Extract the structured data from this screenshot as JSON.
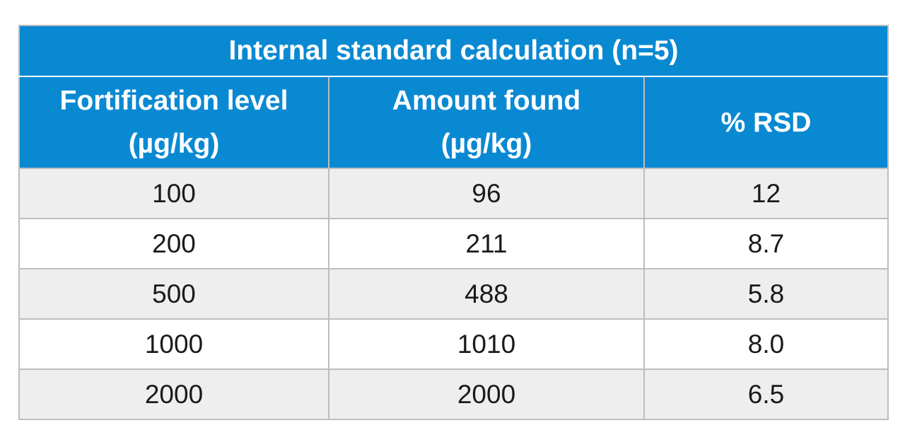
{
  "table": {
    "title": "Internal standard calculation (n=5)",
    "columns": [
      {
        "line1": "Fortification level",
        "line2": "(µg/kg)"
      },
      {
        "line1": "Amount found",
        "line2": "(µg/kg)"
      },
      {
        "line1": "% RSD",
        "line2": ""
      }
    ],
    "rows": [
      [
        "100",
        "96",
        "12"
      ],
      [
        "200",
        "211",
        "8.7"
      ],
      [
        "500",
        "488",
        "5.8"
      ],
      [
        "1000",
        "1010",
        "8.0"
      ],
      [
        "2000",
        "2000",
        "6.5"
      ]
    ],
    "colors": {
      "header_bg": "#0a89d3",
      "header_text": "#ffffff",
      "stripe_bg": "#eeeeef",
      "grid_line": "#bdbdbd"
    }
  }
}
